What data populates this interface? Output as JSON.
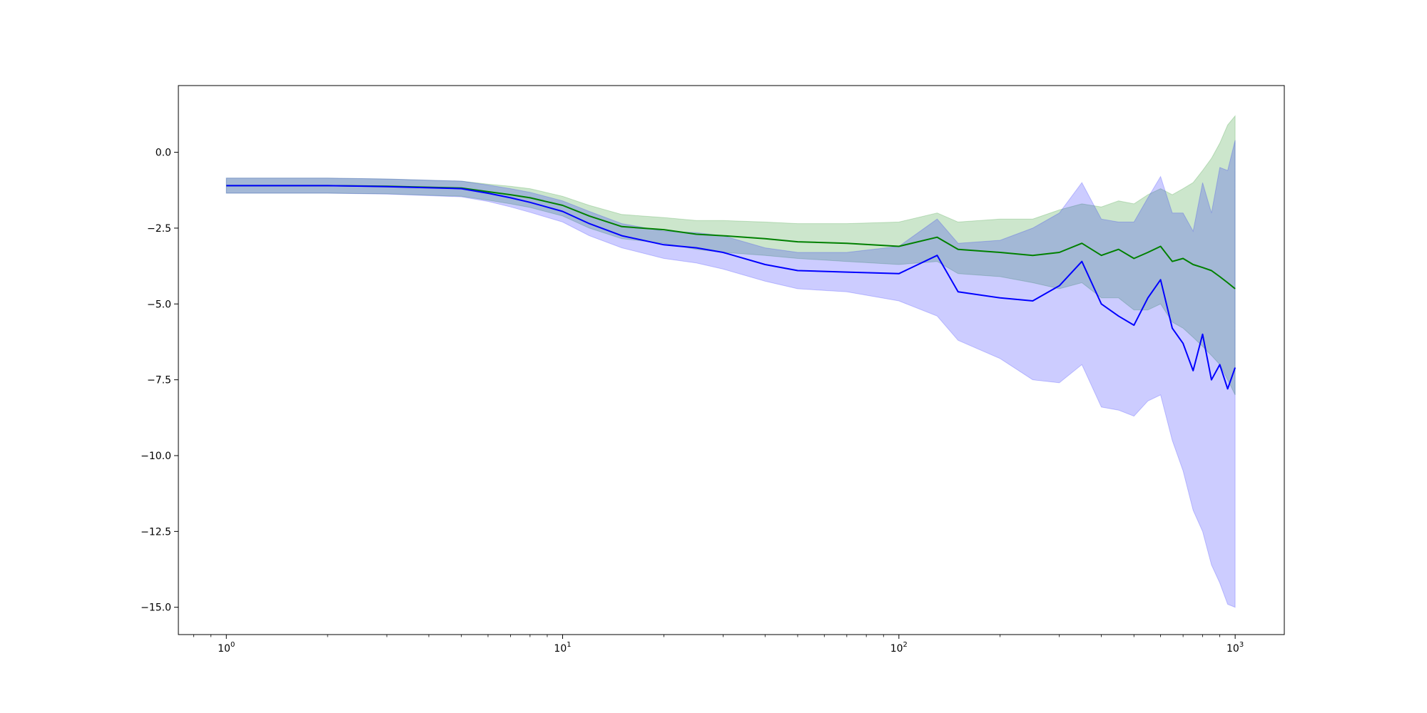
{
  "chart_data": {
    "type": "line",
    "title": "",
    "xlabel": "",
    "ylabel": "",
    "xscale": "log",
    "xlim": [
      0.72,
      1400
    ],
    "ylim": [
      -15.9,
      2.2
    ],
    "grid": false,
    "legend": "none",
    "x_ticks": [
      {
        "value": 1,
        "base": "10",
        "exp": "0"
      },
      {
        "value": 10,
        "base": "10",
        "exp": "1"
      },
      {
        "value": 100,
        "base": "10",
        "exp": "2"
      },
      {
        "value": 1000,
        "base": "10",
        "exp": "3"
      }
    ],
    "y_ticks": [
      {
        "value": 0,
        "label": "0.0"
      },
      {
        "value": -2.5,
        "label": "−2.5"
      },
      {
        "value": -5,
        "label": "−5.0"
      },
      {
        "value": -7.5,
        "label": "−7.5"
      },
      {
        "value": -10,
        "label": "−10.0"
      },
      {
        "value": -12.5,
        "label": "−12.5"
      },
      {
        "value": -15,
        "label": "−15.0"
      }
    ],
    "x": [
      1,
      2,
      3,
      5,
      6,
      7,
      8,
      10,
      12,
      15,
      20,
      25,
      30,
      40,
      50,
      70,
      100,
      130,
      150,
      200,
      250,
      300,
      350,
      400,
      450,
      500,
      550,
      600,
      650,
      700,
      750,
      800,
      850,
      900,
      950,
      1000
    ],
    "series": [
      {
        "color": "#008000",
        "band_color": "#008000",
        "values": [
          -1.1,
          -1.1,
          -1.12,
          -1.18,
          -1.3,
          -1.4,
          -1.5,
          -1.75,
          -2.1,
          -2.45,
          -2.55,
          -2.7,
          -2.75,
          -2.85,
          -2.95,
          -3.0,
          -3.1,
          -2.8,
          -3.2,
          -3.3,
          -3.4,
          -3.3,
          -3.0,
          -3.4,
          -3.2,
          -3.5,
          -3.3,
          -3.1,
          -3.6,
          -3.5,
          -3.7,
          -3.8,
          -3.9,
          -4.1,
          -4.3,
          -4.5
        ],
        "lower": [
          -1.35,
          -1.35,
          -1.37,
          -1.45,
          -1.58,
          -1.7,
          -1.82,
          -2.1,
          -2.5,
          -2.85,
          -3.0,
          -3.2,
          -3.3,
          -3.4,
          -3.5,
          -3.6,
          -3.7,
          -3.6,
          -4.0,
          -4.1,
          -4.3,
          -4.5,
          -4.3,
          -4.8,
          -4.8,
          -5.2,
          -5.2,
          -5.0,
          -5.6,
          -5.8,
          -6.1,
          -6.4,
          -6.7,
          -7.0,
          -7.5,
          -8.0
        ],
        "upper": [
          -0.85,
          -0.85,
          -0.88,
          -0.95,
          -1.05,
          -1.12,
          -1.2,
          -1.45,
          -1.75,
          -2.05,
          -2.15,
          -2.25,
          -2.25,
          -2.3,
          -2.35,
          -2.35,
          -2.3,
          -2.0,
          -2.3,
          -2.2,
          -2.2,
          -1.9,
          -1.7,
          -1.8,
          -1.6,
          -1.7,
          -1.4,
          -1.2,
          -1.4,
          -1.2,
          -1.0,
          -0.6,
          -0.2,
          0.3,
          0.9,
          1.2
        ]
      },
      {
        "color": "#0000ff",
        "band_color": "#0000ff",
        "values": [
          -1.1,
          -1.1,
          -1.13,
          -1.2,
          -1.35,
          -1.5,
          -1.65,
          -1.95,
          -2.35,
          -2.75,
          -3.05,
          -3.15,
          -3.3,
          -3.7,
          -3.9,
          -3.95,
          -4.0,
          -3.4,
          -4.6,
          -4.8,
          -4.9,
          -4.4,
          -3.6,
          -5.0,
          -5.4,
          -5.7,
          -4.8,
          -4.2,
          -5.8,
          -6.3,
          -7.2,
          -6.0,
          -7.5,
          -7.0,
          -7.8,
          -7.1
        ],
        "lower": [
          -1.35,
          -1.35,
          -1.38,
          -1.47,
          -1.62,
          -1.8,
          -1.98,
          -2.3,
          -2.75,
          -3.15,
          -3.5,
          -3.65,
          -3.85,
          -4.25,
          -4.5,
          -4.6,
          -4.9,
          -5.4,
          -6.2,
          -6.8,
          -7.5,
          -7.6,
          -7.0,
          -8.4,
          -8.5,
          -8.7,
          -8.2,
          -8.0,
          -9.5,
          -10.5,
          -11.8,
          -12.5,
          -13.6,
          -14.2,
          -14.9,
          -15.0
        ],
        "upper": [
          -0.85,
          -0.85,
          -0.88,
          -0.95,
          -1.08,
          -1.2,
          -1.32,
          -1.6,
          -1.95,
          -2.35,
          -2.6,
          -2.65,
          -2.75,
          -3.15,
          -3.3,
          -3.3,
          -3.1,
          -2.2,
          -3.0,
          -2.9,
          -2.5,
          -2.0,
          -1.0,
          -2.2,
          -2.3,
          -2.3,
          -1.5,
          -0.8,
          -2.0,
          -2.0,
          -2.6,
          -1.0,
          -2.0,
          -0.5,
          -0.6,
          0.4
        ]
      }
    ]
  }
}
